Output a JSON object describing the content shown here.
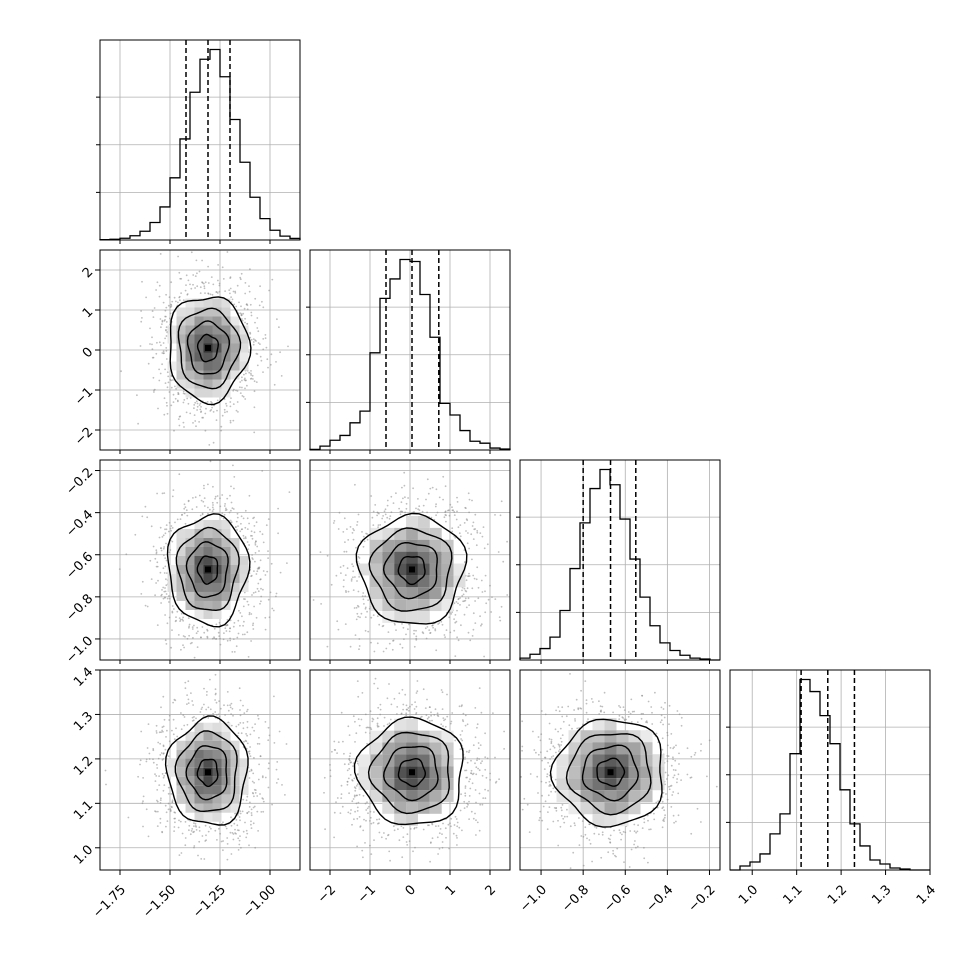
{
  "chart_data": {
    "type": "corner",
    "title": "",
    "parameters": [
      {
        "label": "",
        "range": [
          -1.85,
          -0.85
        ],
        "ticks": [
          -1.75,
          -1.5,
          -1.25,
          -1.0
        ],
        "tick_labels": [
          "−1.75",
          "−1.50",
          "−1.25",
          "−1.00"
        ],
        "quantiles": [
          -1.42,
          -1.31,
          -1.2
        ],
        "histogram": [
          0.002,
          0.004,
          0.009,
          0.022,
          0.045,
          0.09,
          0.17,
          0.32,
          0.52,
          0.76,
          0.93,
          0.98,
          0.84,
          0.62,
          0.4,
          0.22,
          0.11,
          0.05,
          0.02,
          0.008
        ],
        "center": -1.31,
        "sigma": 0.1
      },
      {
        "label": "",
        "range": [
          -2.5,
          2.5
        ],
        "ticks": [
          -2,
          -1,
          0,
          1,
          2
        ],
        "tick_labels": [
          "−2",
          "−1",
          "0",
          "1",
          "2"
        ],
        "quantiles": [
          -0.6,
          0.05,
          0.72
        ],
        "histogram": [
          0.003,
          0.02,
          0.05,
          0.075,
          0.14,
          0.2,
          0.5,
          0.78,
          0.88,
          0.98,
          0.97,
          0.8,
          0.58,
          0.24,
          0.18,
          0.1,
          0.045,
          0.035,
          0.01,
          0.005
        ],
        "center": 0.05,
        "sigma": 0.66
      },
      {
        "label": "",
        "range": [
          -1.1,
          -0.15
        ],
        "ticks": [
          -1.0,
          -0.8,
          -0.6,
          -0.4,
          -0.2
        ],
        "tick_labels": [
          "−1.0",
          "−0.8",
          "−0.6",
          "−0.4",
          "−0.2"
        ],
        "quantiles": [
          -0.8,
          -0.67,
          -0.55
        ],
        "histogram": [
          0.01,
          0.03,
          0.06,
          0.12,
          0.26,
          0.48,
          0.72,
          0.9,
          1.0,
          0.92,
          0.74,
          0.53,
          0.33,
          0.18,
          0.09,
          0.05,
          0.025,
          0.01,
          0.005,
          0.0
        ],
        "center": -0.67,
        "sigma": 0.13
      },
      {
        "label": "",
        "range": [
          0.95,
          1.4
        ],
        "ticks": [
          1.0,
          1.1,
          1.2,
          1.3,
          1.4
        ],
        "tick_labels": [
          "1.0",
          "1.1",
          "1.2",
          "1.3",
          "1.4"
        ],
        "quantiles": [
          1.11,
          1.17,
          1.23
        ],
        "histogram": [
          0.0,
          0.02,
          0.04,
          0.08,
          0.18,
          0.28,
          0.58,
          0.95,
          0.89,
          0.77,
          0.63,
          0.4,
          0.23,
          0.12,
          0.05,
          0.03,
          0.01,
          0.005,
          0.0,
          0.0
        ],
        "center": 1.17,
        "sigma": 0.06
      }
    ],
    "grid": true,
    "diagonal": "1D histograms with dashed 16/50/84% quantiles",
    "off_diagonal": "2D histograms with scatter points and density contours"
  }
}
